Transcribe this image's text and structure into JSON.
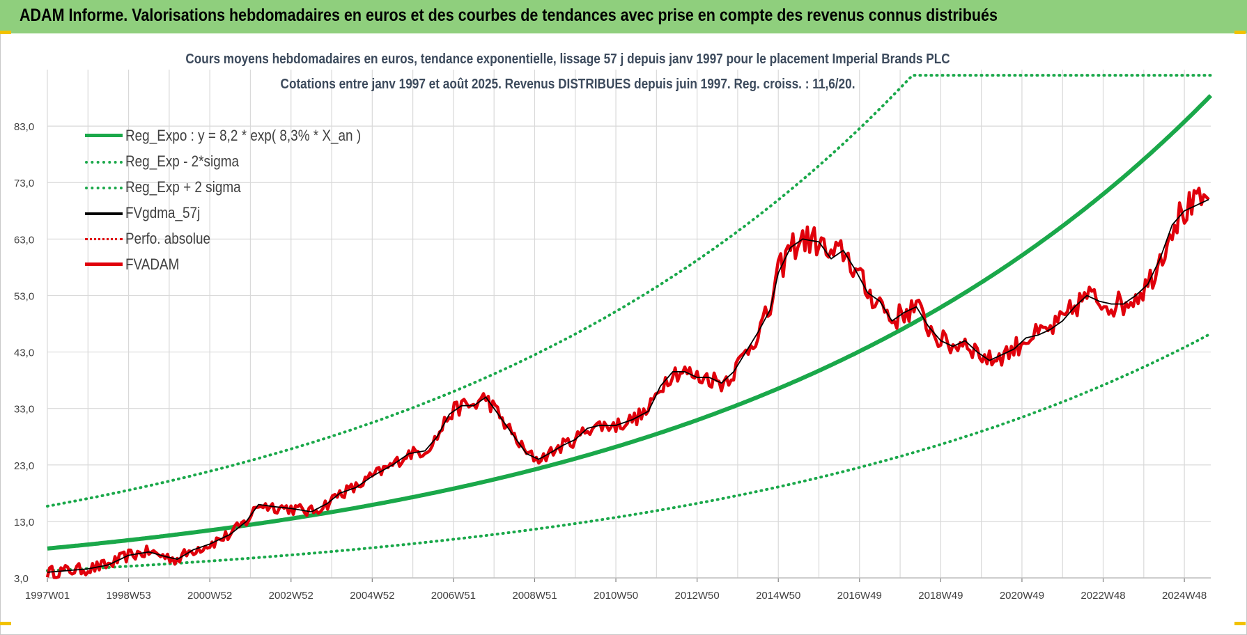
{
  "header": {
    "title": "ADAM Informe. Valorisations hebdomadaires en euros et des courbes de tendances avec prise en compte des revenus connus distribués"
  },
  "colors": {
    "banner": "#8fcf7d",
    "trend": "#1aa84a",
    "band": "#1aa84a",
    "fvgdma": "#000000",
    "perfo": "#e0000b",
    "fvadam": "#e0000b",
    "grid": "#d9d9d9"
  },
  "chart_data": {
    "type": "line",
    "title": "Cours moyens hebdomadaires en euros, tendance exponentielle, lissage 57 j depuis janv 1997 pour le placement Imperial Brands PLC",
    "subtitle": "Cotations entre janv 1997 et août 2025. Revenus DISTRIBUES depuis juin 1997. Reg. croiss. : 11,6/20.",
    "xlabel": "",
    "ylabel": "",
    "x_range": [
      "1997W01",
      "2025W34"
    ],
    "ylim": [
      3.0,
      93.0
    ],
    "y_ticks": [
      "3,0",
      "13,0",
      "23,0",
      "33,0",
      "43,0",
      "53,0",
      "63,0",
      "73,0",
      "83,0"
    ],
    "x_ticks": [
      "1997W01",
      "1998W53",
      "2000W52",
      "2002W52",
      "2004W52",
      "2006W51",
      "2008W51",
      "2010W50",
      "2012W50",
      "2014W50",
      "2016W49",
      "2018W49",
      "2020W49",
      "2022W48",
      "2024W48"
    ],
    "grid": true,
    "legend_position": "top-left",
    "series": [
      {
        "name": "Reg_Expo : y = 8,2 * exp( 8,3% *  X_an )",
        "style": "solid-thick",
        "color": "#1aa84a",
        "model": {
          "a": 8.2,
          "rate": 0.083,
          "start_year": 1997
        }
      },
      {
        "name": "Reg_Exp - 2*sigma",
        "style": "dotted",
        "color": "#1aa84a",
        "model": {
          "a": 4.29,
          "rate": 0.083,
          "start_year": 1997
        }
      },
      {
        "name": "Reg_Exp + 2 sigma",
        "style": "dotted",
        "color": "#1aa84a",
        "model": {
          "a": 15.7,
          "rate": 0.083,
          "start_year": 1997
        },
        "cap": 92.0
      },
      {
        "name": "FVgdma_57j",
        "style": "solid",
        "color": "#000000",
        "points": [
          [
            1997.0,
            4.0
          ],
          [
            1997.5,
            4.3
          ],
          [
            1998.0,
            4.6
          ],
          [
            1998.5,
            5.3
          ],
          [
            1999.0,
            7.0
          ],
          [
            1999.5,
            7.6
          ],
          [
            1999.9,
            6.8
          ],
          [
            2000.2,
            6.3
          ],
          [
            2000.6,
            8.0
          ],
          [
            2001.0,
            9.0
          ],
          [
            2001.5,
            10.7
          ],
          [
            2001.9,
            13.0
          ],
          [
            2002.2,
            16.0
          ],
          [
            2002.6,
            15.6
          ],
          [
            2003.0,
            15.3
          ],
          [
            2003.5,
            14.7
          ],
          [
            2003.9,
            16.2
          ],
          [
            2004.2,
            18.0
          ],
          [
            2004.6,
            19.0
          ],
          [
            2005.0,
            21.0
          ],
          [
            2005.5,
            23.0
          ],
          [
            2005.9,
            25.0
          ],
          [
            2006.3,
            25.5
          ],
          [
            2006.6,
            28.0
          ],
          [
            2006.9,
            32.0
          ],
          [
            2007.2,
            33.5
          ],
          [
            2007.5,
            33.5
          ],
          [
            2007.8,
            35.0
          ],
          [
            2008.2,
            31.0
          ],
          [
            2008.5,
            28.0
          ],
          [
            2008.8,
            25.0
          ],
          [
            2009.1,
            24.0
          ],
          [
            2009.4,
            25.2
          ],
          [
            2009.7,
            26.5
          ],
          [
            2010.0,
            27.5
          ],
          [
            2010.3,
            29.5
          ],
          [
            2010.6,
            30.0
          ],
          [
            2011.0,
            30.0
          ],
          [
            2011.4,
            31.0
          ],
          [
            2011.8,
            32.5
          ],
          [
            2012.1,
            37.0
          ],
          [
            2012.4,
            39.5
          ],
          [
            2012.7,
            39.5
          ],
          [
            2013.0,
            38.5
          ],
          [
            2013.3,
            38.5
          ],
          [
            2013.6,
            37.5
          ],
          [
            2013.9,
            39.5
          ],
          [
            2014.2,
            43.0
          ],
          [
            2014.5,
            46.5
          ],
          [
            2014.8,
            50.5
          ],
          [
            2015.0,
            57.0
          ],
          [
            2015.3,
            61.5
          ],
          [
            2015.6,
            63.0
          ],
          [
            2016.0,
            62.5
          ],
          [
            2016.3,
            59.5
          ],
          [
            2016.6,
            61.0
          ],
          [
            2016.9,
            57.5
          ],
          [
            2017.2,
            53.5
          ],
          [
            2017.5,
            52.0
          ],
          [
            2017.8,
            48.5
          ],
          [
            2018.1,
            50.0
          ],
          [
            2018.4,
            51.0
          ],
          [
            2018.7,
            47.5
          ],
          [
            2019.0,
            45.0
          ],
          [
            2019.3,
            44.0
          ],
          [
            2019.6,
            45.0
          ],
          [
            2019.9,
            43.0
          ],
          [
            2020.2,
            41.5
          ],
          [
            2020.5,
            42.5
          ],
          [
            2020.8,
            43.5
          ],
          [
            2021.1,
            45.5
          ],
          [
            2021.4,
            46.0
          ],
          [
            2021.7,
            47.0
          ],
          [
            2022.0,
            48.5
          ],
          [
            2022.3,
            51.0
          ],
          [
            2022.6,
            53.0
          ],
          [
            2022.9,
            52.0
          ],
          [
            2023.2,
            51.5
          ],
          [
            2023.5,
            51.5
          ],
          [
            2023.8,
            53.0
          ],
          [
            2024.1,
            55.0
          ],
          [
            2024.4,
            59.5
          ],
          [
            2024.7,
            65.5
          ],
          [
            2025.0,
            68.0
          ],
          [
            2025.3,
            69.0
          ],
          [
            2025.6,
            70.0
          ]
        ]
      },
      {
        "name": "Perfo. absolue",
        "style": "dotted",
        "color": "#e0000b",
        "points": []
      },
      {
        "name": "FVADAM",
        "style": "solid-thick",
        "color": "#e0000b",
        "points": [
          [
            1997.0,
            4.0
          ],
          [
            1997.5,
            4.3
          ],
          [
            1998.0,
            4.6
          ],
          [
            1998.5,
            5.3
          ],
          [
            1999.0,
            7.0
          ],
          [
            1999.5,
            7.6
          ],
          [
            1999.9,
            6.8
          ],
          [
            2000.2,
            6.3
          ],
          [
            2000.6,
            8.0
          ],
          [
            2001.0,
            9.0
          ],
          [
            2001.5,
            10.7
          ],
          [
            2001.9,
            13.0
          ],
          [
            2002.2,
            16.0
          ],
          [
            2002.6,
            15.6
          ],
          [
            2003.0,
            15.3
          ],
          [
            2003.5,
            14.7
          ],
          [
            2003.9,
            16.2
          ],
          [
            2004.2,
            18.0
          ],
          [
            2004.6,
            19.0
          ],
          [
            2005.0,
            21.0
          ],
          [
            2005.5,
            23.0
          ],
          [
            2005.9,
            25.0
          ],
          [
            2006.3,
            25.5
          ],
          [
            2006.6,
            28.0
          ],
          [
            2006.9,
            32.0
          ],
          [
            2007.2,
            33.5
          ],
          [
            2007.5,
            33.5
          ],
          [
            2007.8,
            35.0
          ],
          [
            2008.2,
            31.0
          ],
          [
            2008.5,
            28.0
          ],
          [
            2008.8,
            25.0
          ],
          [
            2009.1,
            24.0
          ],
          [
            2009.4,
            25.2
          ],
          [
            2009.7,
            26.5
          ],
          [
            2010.0,
            27.5
          ],
          [
            2010.3,
            29.5
          ],
          [
            2010.6,
            30.0
          ],
          [
            2011.0,
            30.0
          ],
          [
            2011.4,
            31.0
          ],
          [
            2011.8,
            32.5
          ],
          [
            2012.1,
            37.0
          ],
          [
            2012.4,
            39.5
          ],
          [
            2012.7,
            39.5
          ],
          [
            2013.0,
            38.5
          ],
          [
            2013.3,
            38.5
          ],
          [
            2013.6,
            37.5
          ],
          [
            2013.9,
            39.5
          ],
          [
            2014.2,
            43.0
          ],
          [
            2014.5,
            46.5
          ],
          [
            2014.8,
            50.5
          ],
          [
            2015.0,
            57.0
          ],
          [
            2015.3,
            61.5
          ],
          [
            2015.6,
            63.0
          ],
          [
            2016.0,
            62.5
          ],
          [
            2016.3,
            59.5
          ],
          [
            2016.6,
            61.0
          ],
          [
            2016.9,
            57.5
          ],
          [
            2017.2,
            53.5
          ],
          [
            2017.5,
            52.0
          ],
          [
            2017.8,
            48.5
          ],
          [
            2018.1,
            50.0
          ],
          [
            2018.4,
            51.0
          ],
          [
            2018.7,
            47.5
          ],
          [
            2019.0,
            45.0
          ],
          [
            2019.3,
            44.0
          ],
          [
            2019.6,
            45.0
          ],
          [
            2019.9,
            43.0
          ],
          [
            2020.2,
            41.5
          ],
          [
            2020.5,
            42.5
          ],
          [
            2020.8,
            43.5
          ],
          [
            2021.1,
            45.5
          ],
          [
            2021.4,
            46.0
          ],
          [
            2021.7,
            47.0
          ],
          [
            2022.0,
            48.5
          ],
          [
            2022.3,
            51.0
          ],
          [
            2022.6,
            53.0
          ],
          [
            2022.9,
            52.0
          ],
          [
            2023.2,
            51.5
          ],
          [
            2023.5,
            51.5
          ],
          [
            2023.8,
            53.0
          ],
          [
            2024.1,
            55.0
          ],
          [
            2024.4,
            59.5
          ],
          [
            2024.7,
            65.5
          ],
          [
            2025.0,
            68.0
          ],
          [
            2025.3,
            69.0
          ],
          [
            2025.6,
            70.0
          ]
        ]
      }
    ]
  }
}
